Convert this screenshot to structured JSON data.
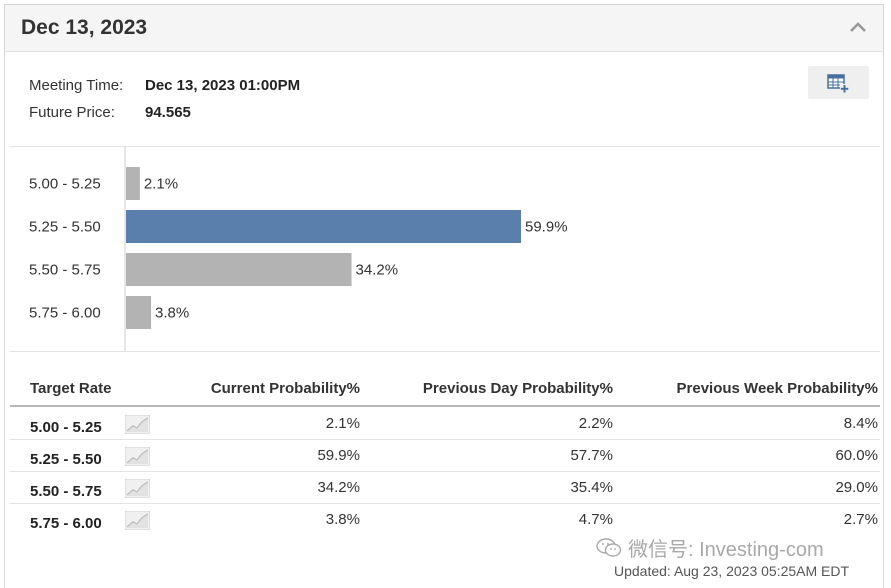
{
  "header": {
    "title": "Dec 13, 2023"
  },
  "meeting": {
    "time_label": "Meeting Time:",
    "time_value": "Dec 13, 2023 01:00PM",
    "price_label": "Future Price:",
    "price_value": "94.565"
  },
  "icons": {
    "collapse": "chevron-up-icon",
    "calendar": "calendar-add-icon",
    "spark": "line-chart-icon",
    "watermark": "wechat-icon"
  },
  "colors": {
    "highlight_bar": "#5b7fac",
    "bar": "#b3b3b3"
  },
  "chart_data": {
    "type": "bar",
    "orientation": "horizontal",
    "categories": [
      "5.00 - 5.25",
      "5.25 - 5.50",
      "5.50 - 5.75",
      "5.75 - 6.00"
    ],
    "values": [
      2.1,
      59.9,
      34.2,
      3.8
    ],
    "value_labels": [
      "2.1%",
      "59.9%",
      "34.2%",
      "3.8%"
    ],
    "highlight_index": 1,
    "xlim": [
      0,
      100
    ],
    "title": "",
    "xlabel": "",
    "ylabel": ""
  },
  "table": {
    "headers": [
      "Target Rate",
      "Current Probability%",
      "Previous Day Probability%",
      "Previous Week Probability%"
    ],
    "rows": [
      {
        "rate": "5.00 - 5.25",
        "current": "2.1%",
        "prev_day": "2.2%",
        "prev_week": "8.4%"
      },
      {
        "rate": "5.25 - 5.50",
        "current": "59.9%",
        "prev_day": "57.7%",
        "prev_week": "60.0%"
      },
      {
        "rate": "5.50 - 5.75",
        "current": "34.2%",
        "prev_day": "35.4%",
        "prev_week": "29.0%"
      },
      {
        "rate": "5.75 - 6.00",
        "current": "3.8%",
        "prev_day": "4.7%",
        "prev_week": "2.7%"
      }
    ]
  },
  "footer": {
    "updated": "Updated: Aug 23, 2023 05:25AM EDT"
  },
  "watermark": {
    "text": "微信号: Investing-com"
  }
}
